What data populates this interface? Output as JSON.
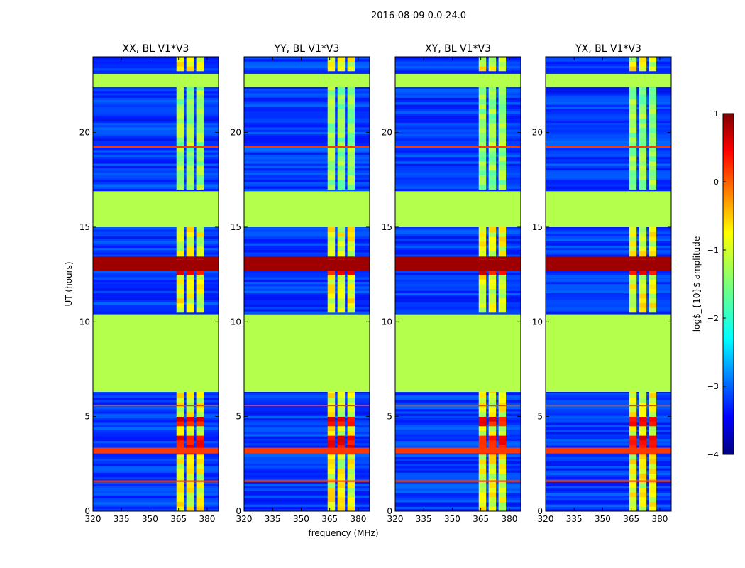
{
  "chart_data": {
    "type": "heatmap",
    "suptitle": "2016-08-09 0.0-24.0",
    "xlabel": "frequency (MHz)",
    "ylabel": "UT (hours)",
    "xlim": [
      320,
      386
    ],
    "ylim": [
      0,
      24
    ],
    "xticks": [
      320,
      335,
      350,
      365,
      380
    ],
    "yticks": [
      0,
      5,
      10,
      15,
      20
    ],
    "panels": [
      {
        "title": "XX, BL V1*V3",
        "rfi_strength": 1.0
      },
      {
        "title": "YY, BL V1*V3",
        "rfi_strength": 0.95
      },
      {
        "title": "XY, BL V1*V3",
        "rfi_strength": 0.9
      },
      {
        "title": "YX, BL V1*V3",
        "rfi_strength": 0.85
      }
    ],
    "flagged_value": -1.25,
    "flagged_time_ranges_hours": [
      [
        6.3,
        10.4
      ],
      [
        15.0,
        16.9
      ],
      [
        22.4,
        23.1
      ]
    ],
    "background_level": -3.1,
    "rfi_channels_mhz": [
      [
        363.9,
        367.8
      ],
      [
        369.1,
        373.0
      ],
      [
        374.3,
        378.2
      ]
    ],
    "strong_rfi_time_ranges_hours": [
      [
        12.4,
        13.2
      ],
      [
        3.0,
        3.8
      ],
      [
        4.3,
        4.8
      ]
    ],
    "colorbar": {
      "label": "log$_{10}$ amplitude",
      "min": -4,
      "max": 1,
      "ticks": [
        "1",
        "0",
        "−1",
        "−2",
        "−3",
        "−4"
      ],
      "colormap": "jet"
    }
  }
}
